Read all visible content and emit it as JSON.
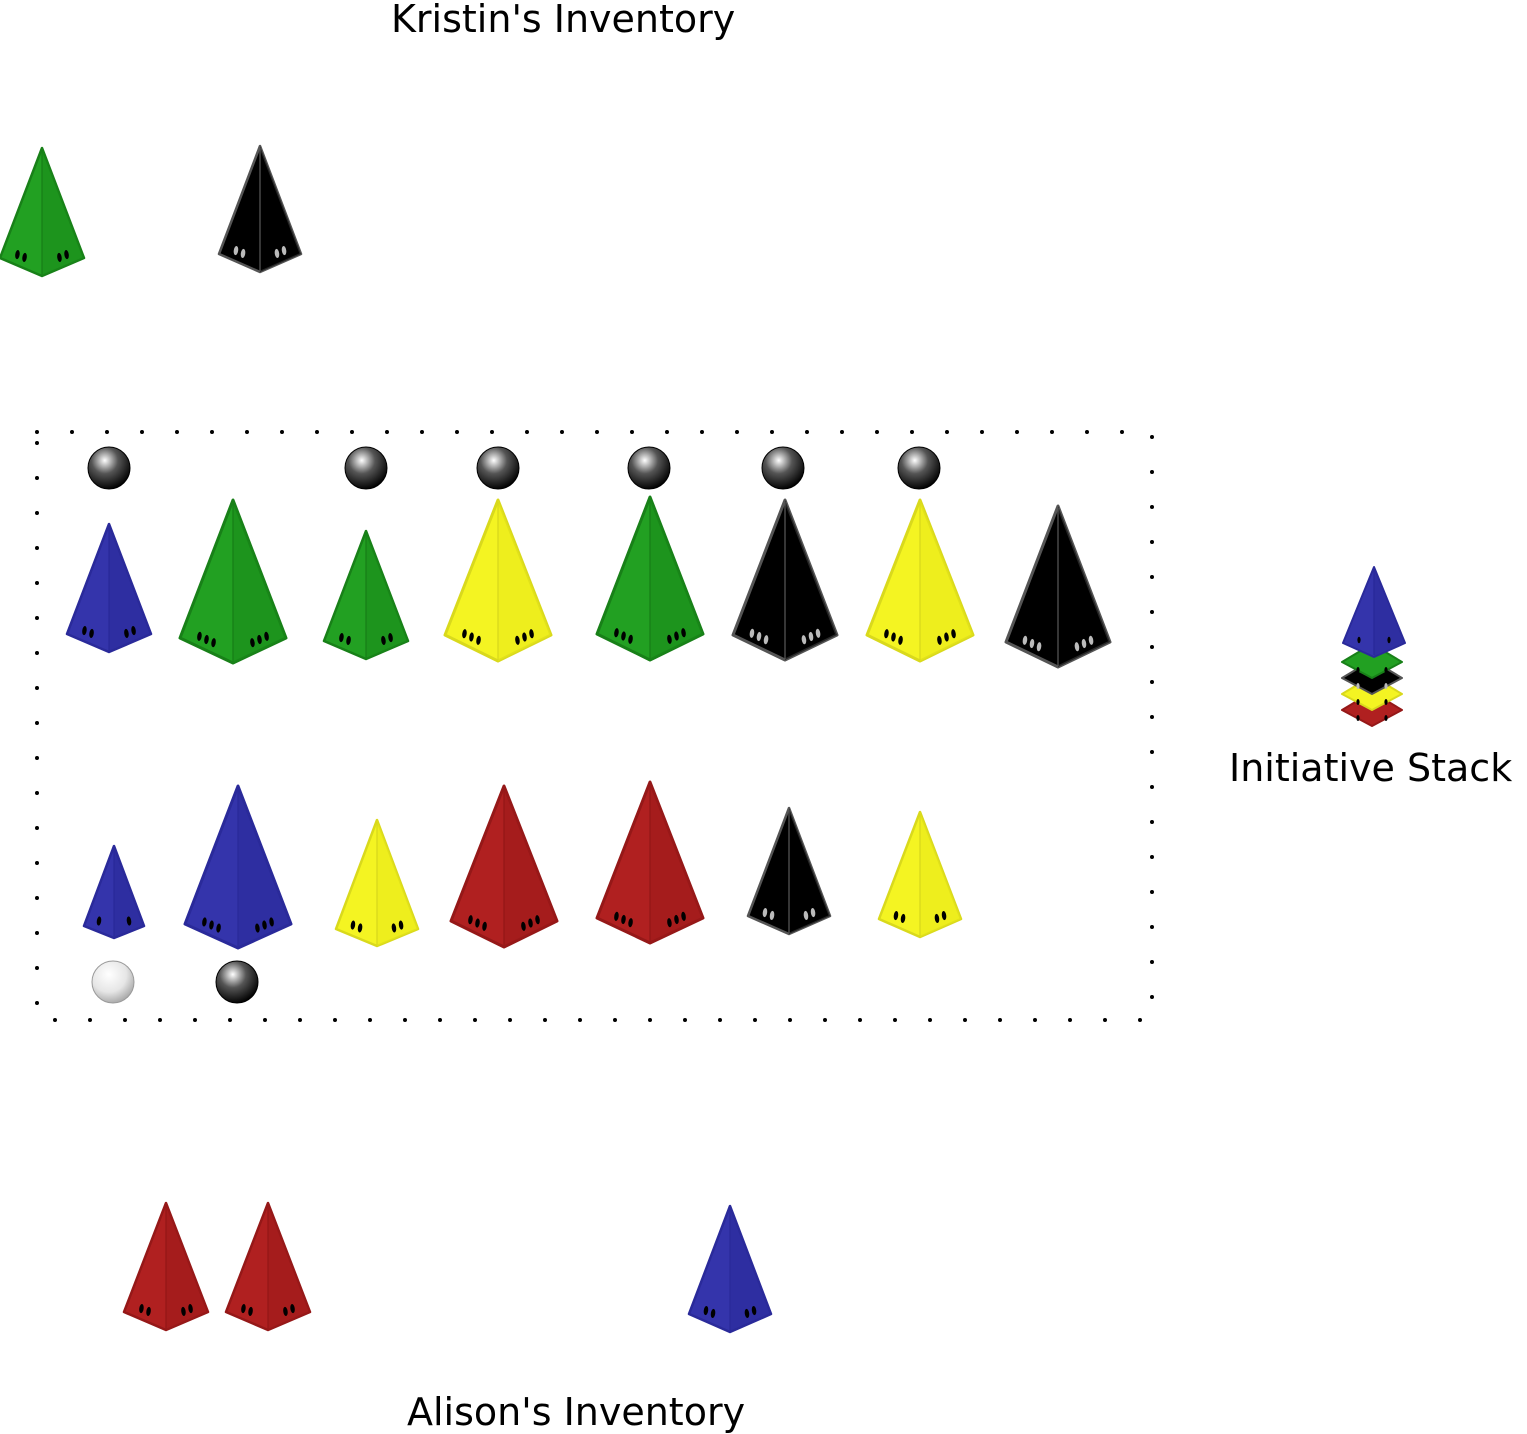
{
  "labels": {
    "kristin_inventory": "Kristin's Inventory",
    "alison_inventory": "Alison's Inventory",
    "initiative_stack": "Initiative Stack"
  },
  "colors": {
    "green": {
      "fill": "#22a022",
      "dark": "#1a8a1a",
      "stroke": "#188018",
      "pips": "#000000"
    },
    "black": {
      "fill": "#000000",
      "dark": "#000000",
      "stroke": "#555555",
      "pips": "#bbbbbb"
    },
    "blue": {
      "fill": "#3434ab",
      "dark": "#2a2a99",
      "stroke": "#2a2a9a",
      "pips": "#000000"
    },
    "yellow": {
      "fill": "#f4f422",
      "dark": "#eaea1a",
      "stroke": "#d9d91c",
      "pips": "#000000"
    },
    "red": {
      "fill": "#b02020",
      "dark": "#9c1a1a",
      "stroke": "#951818",
      "pips": "#000000"
    }
  },
  "kristin_pieces": [
    {
      "id": "k1",
      "color": "green",
      "pips": 2
    },
    {
      "id": "k2",
      "color": "black",
      "pips": 2
    }
  ],
  "board_top_row": [
    {
      "id": "t1",
      "color": "blue",
      "pips": 2,
      "marker": "dark"
    },
    {
      "id": "t2",
      "color": "green",
      "pips": 3,
      "marker": null
    },
    {
      "id": "t3",
      "color": "green",
      "pips": 2,
      "marker": "dark"
    },
    {
      "id": "t4",
      "color": "yellow",
      "pips": 3,
      "marker": "dark"
    },
    {
      "id": "t5",
      "color": "green",
      "pips": 3,
      "marker": "dark"
    },
    {
      "id": "t6",
      "color": "black",
      "pips": 3,
      "marker": "dark"
    },
    {
      "id": "t7",
      "color": "yellow",
      "pips": 3,
      "marker": "dark"
    },
    {
      "id": "t8",
      "color": "black",
      "pips": 3,
      "marker": null
    }
  ],
  "board_bottom_row": [
    {
      "id": "b1",
      "color": "blue",
      "pips": 1,
      "marker": "light"
    },
    {
      "id": "b2",
      "color": "blue",
      "pips": 3,
      "marker": "dark"
    },
    {
      "id": "b3",
      "color": "yellow",
      "pips": 2,
      "marker": null
    },
    {
      "id": "b4",
      "color": "red",
      "pips": 3,
      "marker": null
    },
    {
      "id": "b5",
      "color": "red",
      "pips": 3,
      "marker": null
    },
    {
      "id": "b6",
      "color": "black",
      "pips": 2,
      "marker": null
    },
    {
      "id": "b7",
      "color": "yellow",
      "pips": 2,
      "marker": null
    }
  ],
  "alison_pieces": [
    {
      "id": "a1",
      "color": "red",
      "pips": 2
    },
    {
      "id": "a2",
      "color": "red",
      "pips": 2
    },
    {
      "id": "a3",
      "color": "blue",
      "pips": 2
    }
  ],
  "initiative_stack": [
    "red",
    "yellow",
    "black",
    "green",
    "blue"
  ]
}
